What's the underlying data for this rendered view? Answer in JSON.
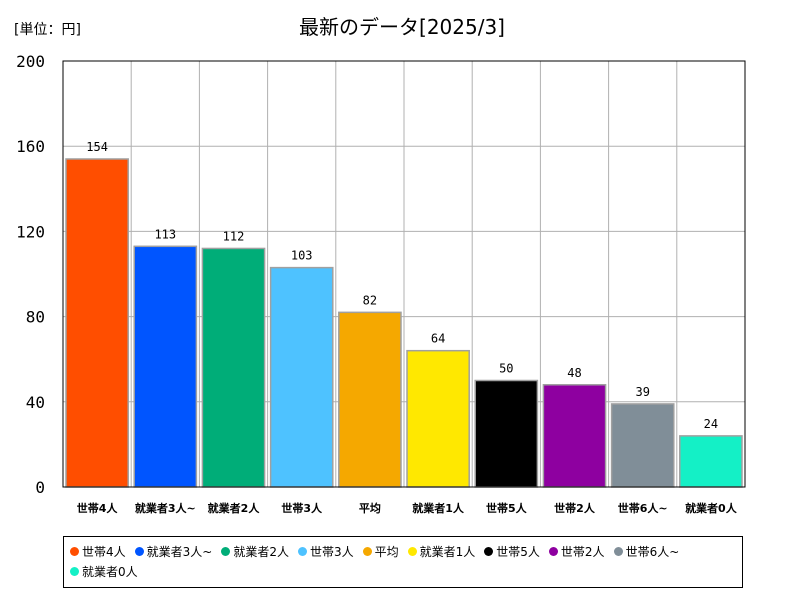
{
  "unit_label": "[単位：円]",
  "chart_data": {
    "type": "bar",
    "title": "最新のデータ[2025/3]",
    "xlabel": "",
    "ylabel": "",
    "ylim": [
      0,
      200
    ],
    "yticks": [
      0,
      40,
      80,
      120,
      160,
      200
    ],
    "grid": true,
    "legend_position": "bottom",
    "categories": [
      "世帯4人",
      "就業者3人~",
      "就業者2人",
      "世帯3人",
      "平均",
      "就業者1人",
      "世帯5人",
      "世帯2人",
      "世帯6人~",
      "就業者0人"
    ],
    "values": [
      154,
      113,
      112,
      103,
      82,
      64,
      50,
      48,
      39,
      24
    ],
    "colors": [
      "#ff4e00",
      "#0055ff",
      "#00ad78",
      "#4ec2ff",
      "#f5a800",
      "#ffe800",
      "#000000",
      "#8e00a0",
      "#808e98",
      "#14f0c6"
    ]
  }
}
